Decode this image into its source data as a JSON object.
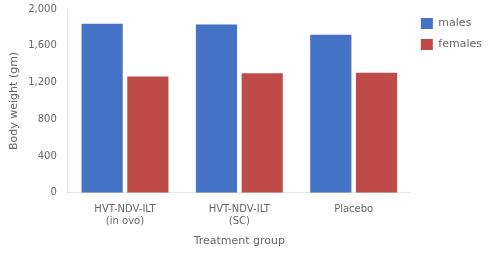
{
  "chart_data": {
    "type": "bar",
    "categories": [
      "HVT-NDV-ILT\n(in ovo)",
      "HVT-NDV-ILT\n(SC)",
      "Placebo"
    ],
    "series": [
      {
        "name": "males",
        "color": "#4472C4",
        "values": [
          1840,
          1830,
          1720
        ]
      },
      {
        "name": "females",
        "color": "#BE4B48",
        "values": [
          1265,
          1300,
          1305
        ]
      }
    ],
    "xlabel": "Treatment group",
    "ylabel": "Body weight (gm)",
    "ylim": [
      0,
      2000
    ],
    "yticks": [
      0,
      400,
      800,
      1200,
      1600,
      2000
    ],
    "grid": false,
    "legend": "right"
  }
}
